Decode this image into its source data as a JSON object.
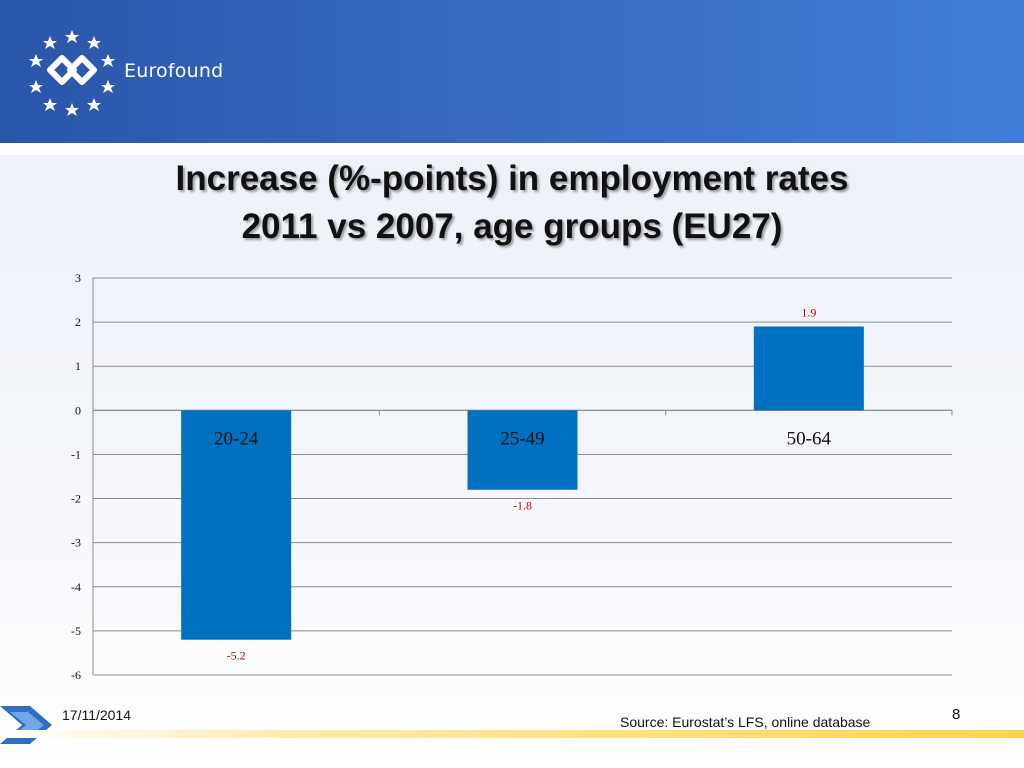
{
  "header": {
    "brand": "Eurofound"
  },
  "title_line1": "Increase (%-points) in employment rates",
  "title_line2": "2011 vs 2007, age groups (EU27)",
  "chart_data": {
    "type": "bar",
    "categories": [
      "20-24",
      "25-49",
      "50-64"
    ],
    "values": [
      -5.2,
      -1.8,
      1.9
    ],
    "data_labels": [
      "-5.2",
      "-1.8",
      "1.9"
    ],
    "ylim": [
      -6,
      3
    ],
    "yticks": [
      3,
      2,
      1,
      0,
      -1,
      -2,
      -3,
      -4,
      -5,
      -6
    ],
    "grid": true,
    "colors": {
      "bar": "#0070c0",
      "data_label": "#c00000",
      "grid": "#8c8c8c",
      "category_label": "#111111"
    }
  },
  "footer": {
    "date": "17/11/2014",
    "source": "Source: Eurostat’s LFS, online database",
    "page": "8"
  }
}
